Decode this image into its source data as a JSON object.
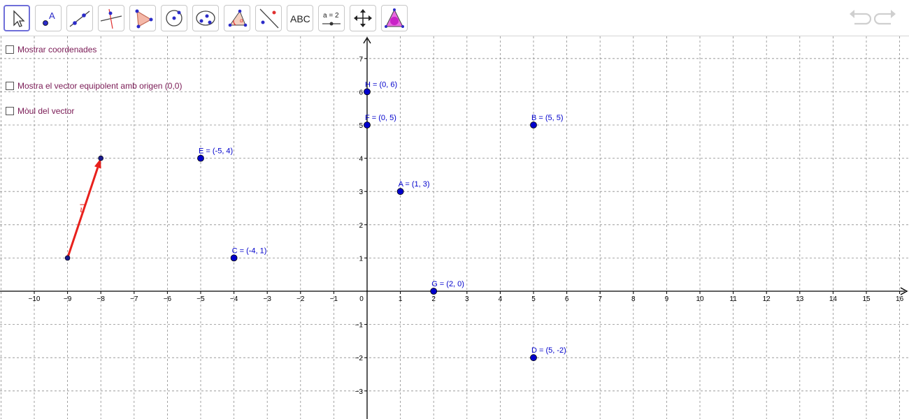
{
  "toolbar": {
    "tools": [
      {
        "name": "move-tool",
        "selected": true
      },
      {
        "name": "point-tool",
        "label": "A"
      },
      {
        "name": "line-tool"
      },
      {
        "name": "perpendicular-line-tool"
      },
      {
        "name": "polygon-tool"
      },
      {
        "name": "circle-tool"
      },
      {
        "name": "conic-tool"
      },
      {
        "name": "angle-tool"
      },
      {
        "name": "reflect-tool"
      },
      {
        "name": "text-tool",
        "label": "ABC"
      },
      {
        "name": "slider-tool",
        "label": "a = 2"
      },
      {
        "name": "move-graphics-view-tool"
      },
      {
        "name": "custom-tool"
      }
    ],
    "undo_icon": "undo-icon",
    "redo_icon": "redo-icon"
  },
  "checkboxes": [
    {
      "id": "show-coordinates",
      "label": "Mostrar coordenades",
      "checked": false
    },
    {
      "id": "show-equivalent-vector",
      "label": "Mostra el vector equipolent amb origen (0,0)",
      "checked": false
    },
    {
      "id": "vector-modulus",
      "label": "Mòul del vector",
      "checked": false
    }
  ],
  "graph": {
    "x_range": [
      -11,
      16.2
    ],
    "y_range": [
      -3.8,
      7.7
    ],
    "x_ticks": [
      -10,
      -9,
      -8,
      -7,
      -6,
      -5,
      -4,
      -3,
      -2,
      -1,
      0,
      1,
      2,
      3,
      4,
      5,
      6,
      7,
      8,
      9,
      10,
      11,
      12,
      13,
      14,
      15,
      16
    ],
    "y_ticks": [
      -3,
      -2,
      -1,
      1,
      2,
      3,
      4,
      5,
      6,
      7
    ],
    "points": [
      {
        "name": "A",
        "x": 1,
        "y": 3,
        "label": "A = (1, 3)"
      },
      {
        "name": "B",
        "x": 5,
        "y": 5,
        "label": "B = (5, 5)"
      },
      {
        "name": "C",
        "x": -4,
        "y": 1,
        "label": "C = (-4, 1)"
      },
      {
        "name": "D",
        "x": 5,
        "y": -2,
        "label": "D = (5, -2)"
      },
      {
        "name": "E",
        "x": -5,
        "y": 4,
        "label": "E = (-5, 4)"
      },
      {
        "name": "F",
        "x": 0,
        "y": 5,
        "label": "F = (0, 5)"
      },
      {
        "name": "G",
        "x": 2,
        "y": 0,
        "label": "G = (2, 0)"
      },
      {
        "name": "H",
        "x": 0,
        "y": 6,
        "label": "H = (0, 6)"
      }
    ],
    "vector": {
      "name": "u",
      "label": "u",
      "from": [
        -9,
        1
      ],
      "to": [
        -8,
        4
      ],
      "color": "#e8201c"
    },
    "point_color": "#0000cc",
    "label_color": "#0000cc",
    "grid_color": "#8c8c8c"
  }
}
